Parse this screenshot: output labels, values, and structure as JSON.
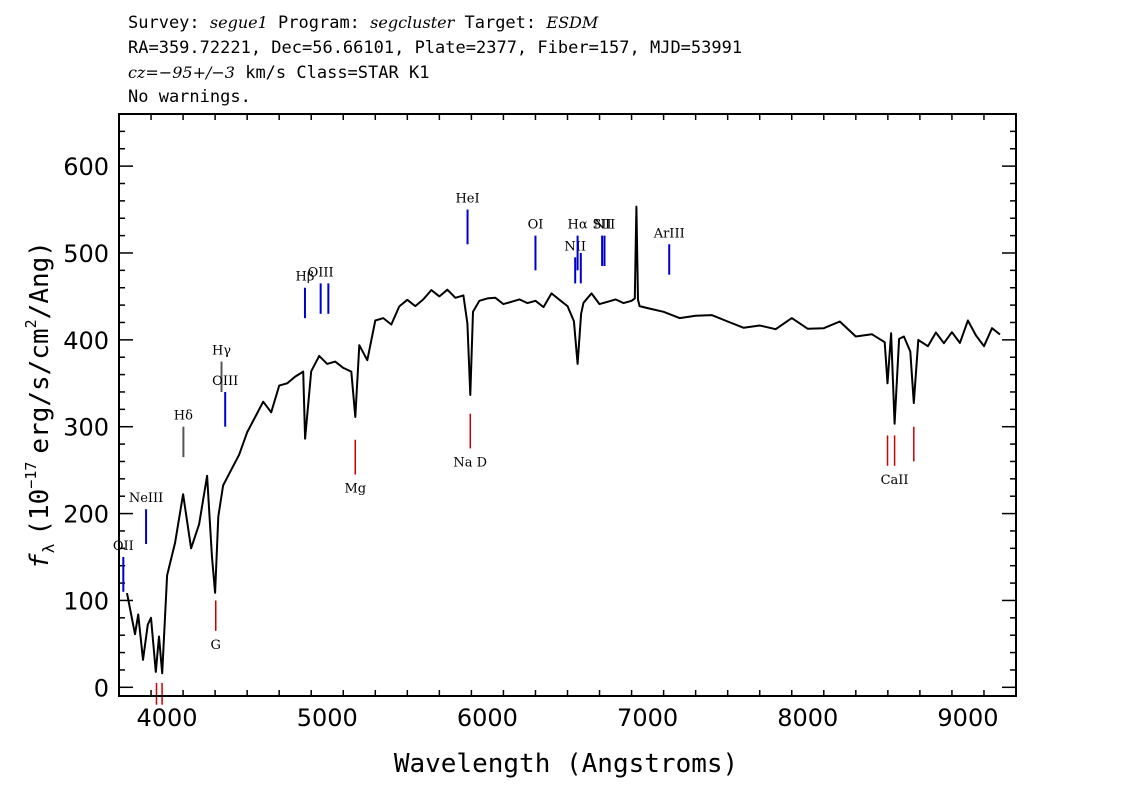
{
  "header": {
    "survey_label": "Survey:",
    "survey": "segue1",
    "program_label": "Program:",
    "program": "segcluster",
    "target_label": "Target:",
    "target": "ESDM",
    "line2": "RA=359.72221, Dec=56.66101, Plate=2377, Fiber=157, MJD=53991",
    "cz_label": "cz=",
    "cz_value": "−95+/−3",
    "cz_units": "km/s Class=STAR K1",
    "warnings": "No warnings."
  },
  "chart_data": {
    "type": "line",
    "title": "",
    "xlabel": "Wavelength (Angstroms)",
    "ylabel_prefix": "f",
    "ylabel_sub": "λ",
    "ylabel_a": "(10",
    "ylabel_exp1": "−17",
    "ylabel_b": "erg/s/cm",
    "ylabel_exp2": "2",
    "ylabel_c": "/Ang)",
    "xlim": [
      3700,
      9300
    ],
    "ylim": [
      -10,
      660
    ],
    "xticks": [
      4000,
      5000,
      6000,
      7000,
      8000,
      9000
    ],
    "yticks": [
      0,
      100,
      200,
      300,
      400,
      500,
      600
    ],
    "series": [
      {
        "name": "flux",
        "color": "#000000",
        "x": [
          3750,
          3800,
          3820,
          3850,
          3880,
          3900,
          3930,
          3950,
          3970,
          4000,
          4050,
          4100,
          4150,
          4200,
          4250,
          4280,
          4300,
          4320,
          4350,
          4400,
          4450,
          4500,
          4550,
          4600,
          4650,
          4700,
          4750,
          4800,
          4850,
          4862,
          4900,
          4950,
          5000,
          5050,
          5100,
          5150,
          5175,
          5200,
          5250,
          5300,
          5350,
          5400,
          5450,
          5500,
          5550,
          5600,
          5650,
          5700,
          5750,
          5800,
          5850,
          5875,
          5893,
          5910,
          5950,
          6000,
          6050,
          6100,
          6150,
          6200,
          6250,
          6300,
          6350,
          6400,
          6450,
          6500,
          6540,
          6563,
          6585,
          6600,
          6650,
          6700,
          6750,
          6800,
          6850,
          6900,
          6920,
          6930,
          6940,
          6950,
          7000,
          7100,
          7200,
          7300,
          7400,
          7500,
          7600,
          7700,
          7800,
          7900,
          8000,
          8100,
          8200,
          8300,
          8400,
          8480,
          8498,
          8520,
          8542,
          8570,
          8600,
          8640,
          8662,
          8690,
          8750,
          8800,
          8850,
          8900,
          8950,
          9000,
          9050,
          9100,
          9150,
          9200
        ],
        "values": [
          105,
          60,
          85,
          35,
          70,
          80,
          20,
          55,
          15,
          130,
          170,
          220,
          160,
          190,
          240,
          150,
          110,
          200,
          230,
          250,
          270,
          290,
          310,
          330,
          320,
          345,
          350,
          360,
          360,
          285,
          365,
          385,
          370,
          375,
          370,
          360,
          310,
          395,
          380,
          420,
          425,
          420,
          435,
          445,
          440,
          450,
          455,
          450,
          460,
          445,
          450,
          420,
          340,
          430,
          445,
          450,
          445,
          440,
          445,
          450,
          440,
          445,
          440,
          450,
          445,
          440,
          425,
          370,
          430,
          445,
          450,
          440,
          445,
          450,
          440,
          445,
          450,
          550,
          445,
          440,
          440,
          430,
          425,
          430,
          425,
          420,
          415,
          420,
          410,
          425,
          415,
          410,
          420,
          405,
          410,
          395,
          350,
          410,
          300,
          400,
          405,
          390,
          325,
          400,
          395,
          405,
          395,
          410,
          400,
          420,
          405,
          395,
          410,
          405
        ]
      }
    ],
    "lines_above": [
      {
        "label": "OII",
        "x": 3727,
        "y1": 110,
        "y2": 150,
        "color": "#0000cc"
      },
      {
        "label": "NeIII",
        "x": 3869,
        "y1": 165,
        "y2": 205,
        "color": "#0000cc"
      },
      {
        "label": "Hδ",
        "x": 4102,
        "y1": 265,
        "y2": 300,
        "color": "#555555"
      },
      {
        "label": "Hγ",
        "x": 4340,
        "y1": 340,
        "y2": 375,
        "color": "#555555"
      },
      {
        "label": "OIII",
        "x": 4363,
        "y1": 300,
        "y2": 340,
        "color": "#0000cc"
      },
      {
        "label": "Hβ",
        "x": 4861,
        "y1": 425,
        "y2": 460,
        "color": "#0000cc"
      },
      {
        "label": "OIII",
        "x": 4959,
        "y1": 430,
        "y2": 465,
        "color": "#0000cc"
      },
      {
        "label": "",
        "x": 5007,
        "y1": 430,
        "y2": 465,
        "color": "#0000cc"
      },
      {
        "label": "HeI",
        "x": 5876,
        "y1": 510,
        "y2": 550,
        "color": "#0000cc"
      },
      {
        "label": "OI",
        "x": 6300,
        "y1": 480,
        "y2": 520,
        "color": "#0000cc"
      },
      {
        "label": "NII",
        "x": 6548,
        "y1": 465,
        "y2": 495,
        "color": "#0000cc"
      },
      {
        "label": "Hα",
        "x": 6563,
        "y1": 480,
        "y2": 520,
        "color": "#0000cc"
      },
      {
        "label": "",
        "x": 6583,
        "y1": 465,
        "y2": 500,
        "color": "#0000cc"
      },
      {
        "label": "SII",
        "x": 6716,
        "y1": 485,
        "y2": 520,
        "color": "#0000cc"
      },
      {
        "label": "NII",
        "x": 6731,
        "y1": 485,
        "y2": 520,
        "color": "#0000cc"
      },
      {
        "label": "ArIII",
        "x": 7135,
        "y1": 475,
        "y2": 510,
        "color": "#0000cc"
      }
    ],
    "lines_below": [
      {
        "label": "",
        "x": 3934,
        "y1": -20,
        "y2": 5,
        "color": "#cc0000"
      },
      {
        "label": "",
        "x": 3969,
        "y1": -20,
        "y2": 5,
        "color": "#cc0000"
      },
      {
        "label": "G",
        "x": 4304,
        "y1": 65,
        "y2": 100,
        "color": "#cc0000"
      },
      {
        "label": "Mg",
        "x": 5175,
        "y1": 245,
        "y2": 285,
        "color": "#cc0000"
      },
      {
        "label": "Na D",
        "x": 5893,
        "y1": 275,
        "y2": 315,
        "color": "#cc0000"
      },
      {
        "label": "",
        "x": 8498,
        "y1": 255,
        "y2": 290,
        "color": "#cc0000"
      },
      {
        "label": "CaII",
        "x": 8542,
        "y1": 255,
        "y2": 290,
        "color": "#cc0000"
      },
      {
        "label": "",
        "x": 8662,
        "y1": 260,
        "y2": 300,
        "color": "#cc0000"
      }
    ]
  }
}
